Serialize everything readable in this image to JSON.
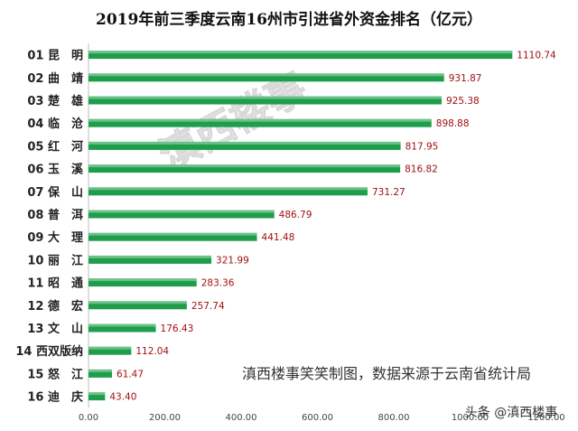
{
  "chart_data": {
    "type": "bar",
    "orientation": "horizontal",
    "title": "2019年前三季度云南16州市引进省外资金排名（亿元）",
    "categories": [
      "01 昆　明",
      "02 曲　靖",
      "03 楚　雄",
      "04 临　沧",
      "05 红　河",
      "06 玉　溪",
      "07 保　山",
      "08 普　洱",
      "09 大　理",
      "10 丽　江",
      "11 昭　通",
      "12 德　宏",
      "13 文　山",
      "14 西双版纳",
      "15 怒　江",
      "16 迪　庆"
    ],
    "values": [
      1110.74,
      931.87,
      925.38,
      898.88,
      817.95,
      816.82,
      731.27,
      486.79,
      441.48,
      321.99,
      283.36,
      257.74,
      176.43,
      112.04,
      61.47,
      43.4
    ],
    "value_labels": [
      "1110.74",
      "931.87",
      "925.38",
      "898.88",
      "817.95",
      "816.82",
      "731.27",
      "486.79",
      "441.48",
      "321.99",
      "283.36",
      "257.74",
      "176.43",
      "112.04",
      "61.47",
      "43.40"
    ],
    "xlim": [
      0,
      1200
    ],
    "x_ticks": [
      "0.00",
      "200.00",
      "400.00",
      "600.00",
      "800.00",
      "1000.00",
      "1200.00"
    ],
    "grid": false,
    "bar_color": "#1e9e4a",
    "value_label_color": "#a01010"
  },
  "watermark": "滇西楼事",
  "source_note": "滇西楼事笑笑制图，数据来源于云南省统计局",
  "brand_mark": "头条 @滇西楼事"
}
